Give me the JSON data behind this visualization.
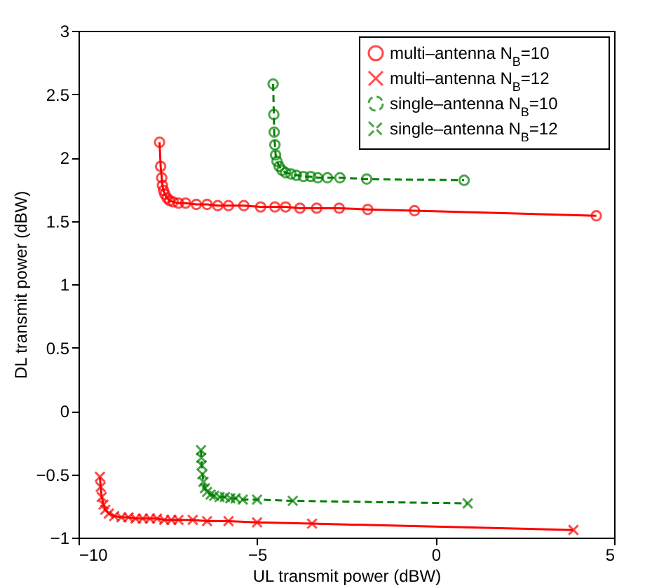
{
  "chart_data": {
    "type": "line",
    "xlabel": "UL transmit power (dBW)",
    "ylabel": "DL transmit power (dBW)",
    "xlim": [
      -10,
      5
    ],
    "xticks": [
      -10,
      -5,
      0,
      5
    ],
    "ylim": [
      -1,
      3
    ],
    "yticks": [
      -1,
      -0.5,
      0,
      0.5,
      1,
      1.5,
      2,
      2.5,
      3
    ],
    "grid": false,
    "legend": "top right",
    "series": [
      {
        "name": "multi–antenna N$_{B}$=10",
        "color": "#ff0000",
        "marker": "circle",
        "line_style": "solid",
        "x": [
          -7.73,
          -7.7,
          -7.67,
          -7.65,
          -7.62,
          -7.58,
          -7.52,
          -7.45,
          -7.35,
          -7.2,
          -7.0,
          -6.7,
          -6.4,
          -6.1,
          -5.8,
          -5.37,
          -4.9,
          -4.5,
          -4.2,
          -3.8,
          -3.33,
          -2.7,
          -1.9,
          -0.59,
          4.5
        ],
        "values": [
          2.12,
          1.93,
          1.84,
          1.78,
          1.74,
          1.71,
          1.68,
          1.66,
          1.65,
          1.64,
          1.64,
          1.63,
          1.63,
          1.62,
          1.62,
          1.62,
          1.61,
          1.61,
          1.61,
          1.6,
          1.6,
          1.6,
          1.59,
          1.58,
          1.54
        ]
      },
      {
        "name": "multi–antenna N$_{B}$=12",
        "color": "#ff0000",
        "marker": "cross",
        "line_style": "solid",
        "x": [
          -9.4,
          -9.38,
          -9.35,
          -9.3,
          -9.25,
          -9.15,
          -9.0,
          -8.8,
          -8.6,
          -8.4,
          -8.2,
          -8.0,
          -7.8,
          -7.6,
          -7.4,
          -7.2,
          -6.8,
          -6.4,
          -5.8,
          -5.0,
          -3.46,
          3.86
        ],
        "values": [
          -0.52,
          -0.6,
          -0.68,
          -0.74,
          -0.78,
          -0.81,
          -0.83,
          -0.84,
          -0.84,
          -0.85,
          -0.85,
          -0.85,
          -0.85,
          -0.86,
          -0.86,
          -0.86,
          -0.86,
          -0.87,
          -0.87,
          -0.88,
          -0.89,
          -0.94
        ]
      },
      {
        "name": "single–antenna N$_{B}$=10",
        "color": "#008000",
        "marker": "circle",
        "line_style": "dashed",
        "x": [
          -4.55,
          -4.53,
          -4.52,
          -4.5,
          -4.48,
          -4.44,
          -4.38,
          -4.3,
          -4.2,
          -4.05,
          -3.9,
          -3.7,
          -3.5,
          -3.3,
          -3.03,
          -2.68,
          -1.93,
          0.8
        ],
        "values": [
          2.58,
          2.34,
          2.2,
          2.1,
          2.02,
          1.97,
          1.93,
          1.9,
          1.88,
          1.87,
          1.86,
          1.85,
          1.85,
          1.84,
          1.84,
          1.84,
          1.83,
          1.82
        ]
      },
      {
        "name": "single–antenna N$_{B}$=12",
        "color": "#008000",
        "marker": "cross",
        "line_style": "dashed",
        "x": [
          -6.57,
          -6.56,
          -6.55,
          -6.53,
          -6.5,
          -6.46,
          -6.4,
          -6.3,
          -6.2,
          -6.05,
          -5.9,
          -5.75,
          -5.6,
          -5.4,
          -5.0,
          -4.0,
          0.9
        ],
        "values": [
          -0.31,
          -0.37,
          -0.43,
          -0.5,
          -0.56,
          -0.61,
          -0.64,
          -0.66,
          -0.67,
          -0.68,
          -0.68,
          -0.69,
          -0.69,
          -0.7,
          -0.7,
          -0.71,
          -0.73
        ]
      }
    ]
  }
}
